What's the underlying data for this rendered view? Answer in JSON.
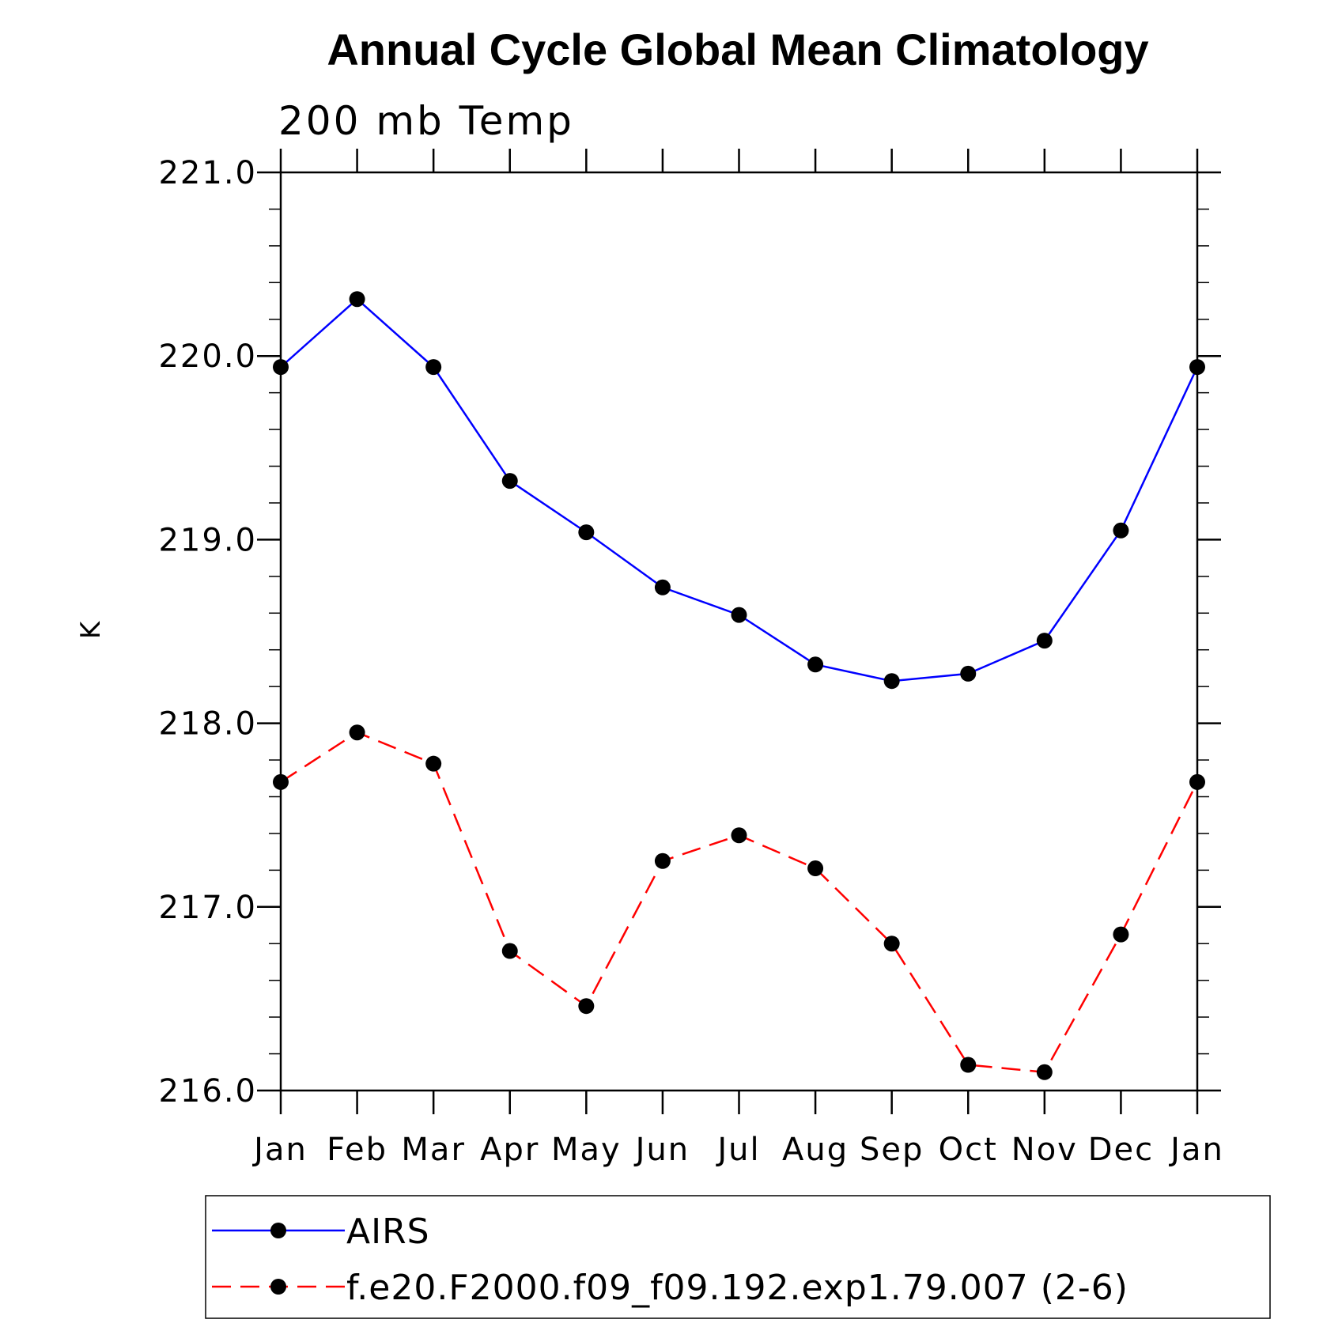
{
  "chart_data": {
    "type": "line",
    "title": "Annual Cycle Global Mean Climatology",
    "subtitle": "200 mb Temp",
    "xlabel": "",
    "ylabel": "K",
    "categories": [
      "Jan",
      "Feb",
      "Mar",
      "Apr",
      "May",
      "Jun",
      "Jul",
      "Aug",
      "Sep",
      "Oct",
      "Nov",
      "Dec",
      "Jan"
    ],
    "ylim": [
      216.0,
      221.0
    ],
    "yticks": [
      "216.0",
      "217.0",
      "218.0",
      "219.0",
      "220.0",
      "221.0"
    ],
    "grid": false,
    "legend_position": "bottom",
    "series": [
      {
        "name": "AIRS",
        "color": "#0000ff",
        "dash": "solid",
        "marker": "filled-circle",
        "values": [
          219.94,
          220.31,
          219.94,
          219.32,
          219.04,
          218.74,
          218.59,
          218.32,
          218.23,
          218.27,
          218.45,
          219.05,
          219.94
        ]
      },
      {
        "name": "f.e20.F2000.f09_f09.192.exp1.79.007 (2-6)",
        "color": "#ff0000",
        "dash": "dashed",
        "marker": "filled-circle",
        "values": [
          217.68,
          217.95,
          217.78,
          216.76,
          216.46,
          217.25,
          217.39,
          217.21,
          216.8,
          216.14,
          216.1,
          216.85,
          217.68
        ]
      }
    ]
  }
}
